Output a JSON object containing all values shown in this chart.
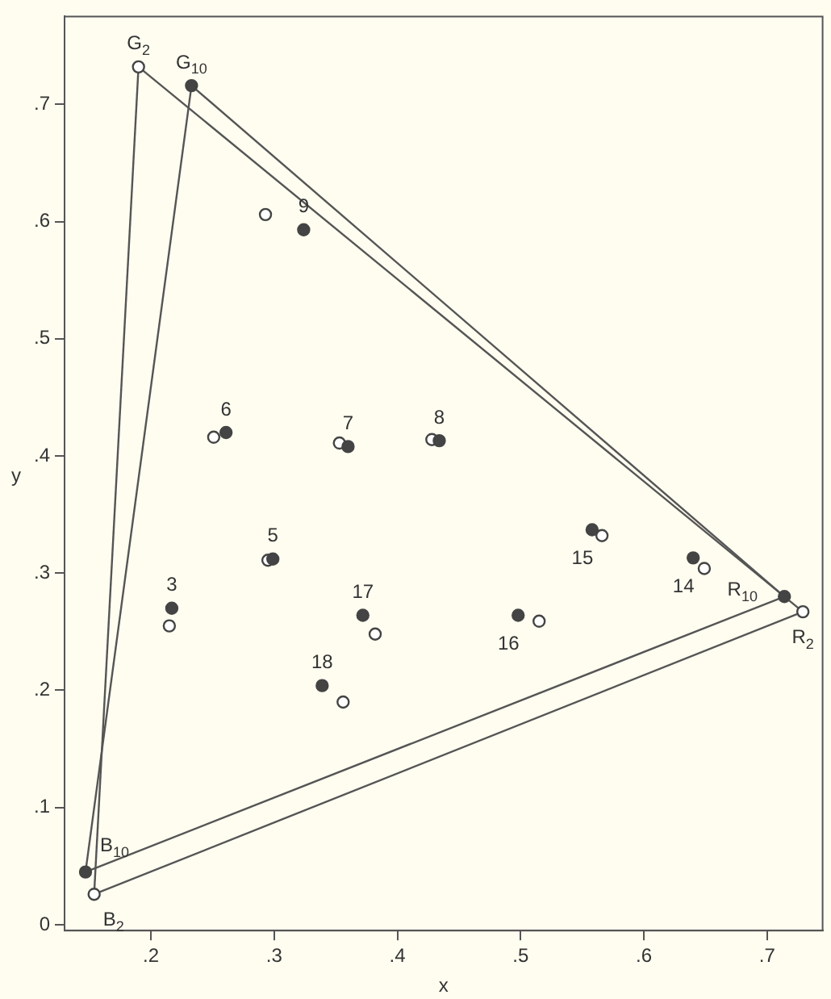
{
  "chart_data": {
    "type": "scatter",
    "xlabel": "x",
    "ylabel": "y",
    "marker": "circle",
    "grid": false,
    "legend": false,
    "xlim": [
      0.13,
      0.745
    ],
    "ylim": [
      -0.005,
      0.775
    ],
    "xticks": [
      {
        "value": 0.2,
        "label": ".2"
      },
      {
        "value": 0.3,
        "label": ".3"
      },
      {
        "value": 0.4,
        "label": ".4"
      },
      {
        "value": 0.5,
        "label": ".5"
      },
      {
        "value": 0.6,
        "label": ".6"
      },
      {
        "value": 0.7,
        "label": ".7"
      }
    ],
    "yticks": [
      0,
      {
        "value": 0.1,
        "label": ".1"
      },
      {
        "value": 0.2,
        "label": ".2"
      },
      {
        "value": 0.3,
        "label": ".3"
      },
      {
        "value": 0.4,
        "label": ".4"
      },
      {
        "value": 0.5,
        "label": ".5"
      },
      {
        "value": 0.6,
        "label": ".6"
      },
      {
        "value": 0.7,
        "label": ".7"
      }
    ],
    "series": [
      {
        "type": "line",
        "marker": "none",
        "color": "#555555",
        "x": [
          0.19,
          0.729
        ],
        "values": [
          0.732,
          0.267
        ]
      },
      {
        "type": "line",
        "marker": "none",
        "color": "#555555",
        "x": [
          0.154,
          0.729
        ],
        "values": [
          0.026,
          0.267
        ]
      },
      {
        "type": "line",
        "marker": "none",
        "color": "#555555",
        "x": [
          0.154,
          0.19
        ],
        "values": [
          0.026,
          0.732
        ]
      },
      {
        "type": "line",
        "marker": "none",
        "color": "#555555",
        "x": [
          0.233,
          0.714
        ],
        "values": [
          0.716,
          0.28
        ]
      },
      {
        "type": "line",
        "marker": "none",
        "color": "#555555",
        "x": [
          0.147,
          0.714
        ],
        "values": [
          0.045,
          0.28
        ]
      },
      {
        "type": "line",
        "marker": "none",
        "color": "#555555",
        "x": [
          0.147,
          0.233
        ],
        "values": [
          0.045,
          0.716
        ]
      },
      {
        "color": "#ffffff",
        "x": [
          0.19,
          0.729,
          0.154,
          0.215,
          0.295,
          0.251,
          0.353,
          0.428,
          0.293,
          0.649,
          0.566,
          0.515,
          0.382,
          0.356
        ],
        "values": [
          0.732,
          0.267,
          0.026,
          0.255,
          0.311,
          0.416,
          0.411,
          0.414,
          0.606,
          0.304,
          0.332,
          0.259,
          0.248,
          0.19
        ]
      },
      {
        "color": "#444444",
        "x": [
          0.233,
          0.714,
          0.147,
          0.217,
          0.299,
          0.261,
          0.36,
          0.434,
          0.324,
          0.64,
          0.558,
          0.498,
          0.372,
          0.339
        ],
        "values": [
          0.716,
          0.28,
          0.045,
          0.27,
          0.312,
          0.42,
          0.408,
          0.413,
          0.593,
          0.313,
          0.337,
          0.264,
          0.264,
          0.204
        ]
      }
    ],
    "annotations": [
      {
        "text": "G$_{2}$",
        "x": 0.19,
        "y": 0.732
      },
      {
        "text": "G$_{10}$",
        "x": 0.233,
        "y": 0.716
      },
      {
        "text": "R$_{10}$",
        "x": 0.714,
        "y": 0.28
      },
      {
        "text": "R$_{2}$",
        "x": 0.729,
        "y": 0.267
      },
      {
        "text": "B$_{10}$",
        "x": 0.147,
        "y": 0.045
      },
      {
        "text": "B$_{2}$",
        "x": 0.154,
        "y": 0.026
      },
      {
        "text": "3",
        "x": 0.217,
        "y": 0.27
      },
      {
        "text": "5",
        "x": 0.299,
        "y": 0.312
      },
      {
        "text": "6",
        "x": 0.261,
        "y": 0.42
      },
      {
        "text": "7",
        "x": 0.36,
        "y": 0.408
      },
      {
        "text": "8",
        "x": 0.434,
        "y": 0.413
      },
      {
        "text": "9",
        "x": 0.324,
        "y": 0.593
      },
      {
        "text": "14",
        "x": 0.64,
        "y": 0.313
      },
      {
        "text": "15",
        "x": 0.558,
        "y": 0.337
      },
      {
        "text": "16",
        "x": 0.498,
        "y": 0.264
      },
      {
        "text": "17",
        "x": 0.372,
        "y": 0.264
      },
      {
        "text": "18",
        "x": 0.339,
        "y": 0.204
      }
    ]
  }
}
